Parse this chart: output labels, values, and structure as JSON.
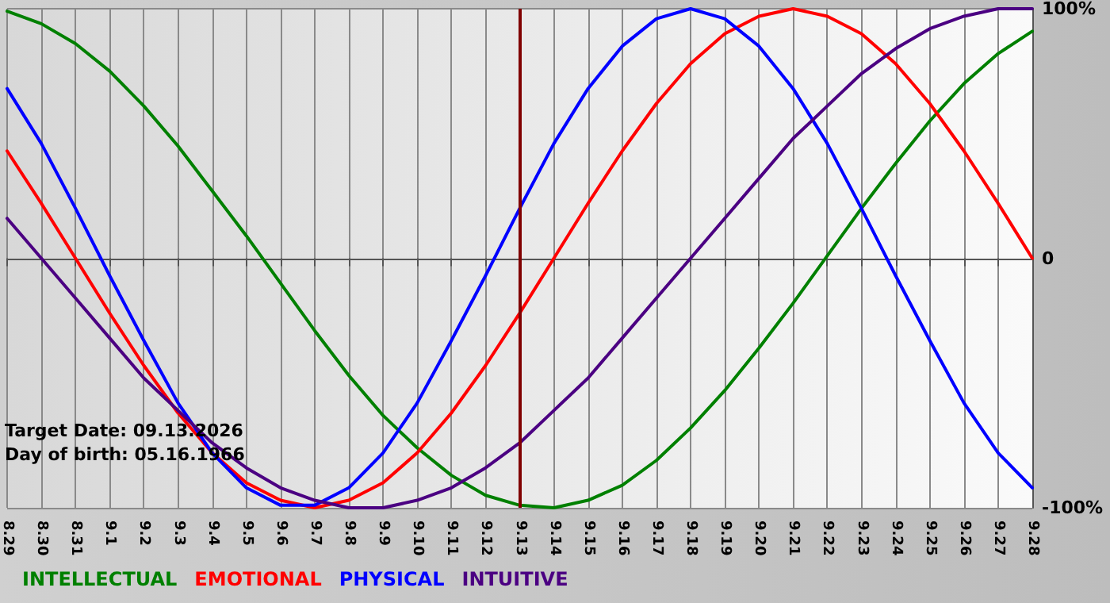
{
  "chart_data": {
    "type": "line",
    "categories": [
      "8.29",
      "8.30",
      "8.31",
      "9.1",
      "9.2",
      "9.3",
      "9.4",
      "9.5",
      "9.6",
      "9.7",
      "9.8",
      "9.9",
      "9.10",
      "9.11",
      "9.12",
      "9.13",
      "9.14",
      "9.15",
      "9.16",
      "9.17",
      "9.18",
      "9.19",
      "9.20",
      "9.21",
      "9.22",
      "9.23",
      "9.24",
      "9.25",
      "9.26",
      "9.27",
      "9.28"
    ],
    "series": [
      {
        "name": "INTELLECTUAL",
        "color": "#008000",
        "values": [
          99,
          94,
          86,
          75,
          61,
          45,
          27,
          9,
          -10,
          -29,
          -47,
          -63,
          -76,
          -87,
          -95,
          -99,
          -100,
          -97,
          -91,
          -81,
          -68,
          -53,
          -36,
          -18,
          1,
          20,
          38,
          55,
          70,
          82,
          91
        ]
      },
      {
        "name": "EMOTIONAL",
        "color": "#ff0000",
        "values": [
          43,
          22,
          0,
          -22,
          -43,
          -62,
          -78,
          -90,
          -97,
          -100,
          -97,
          -90,
          -78,
          -62,
          -43,
          -22,
          0,
          22,
          43,
          62,
          78,
          90,
          97,
          100,
          97,
          90,
          78,
          62,
          43,
          22,
          0
        ]
      },
      {
        "name": "PHYSICAL",
        "color": "#0000ff",
        "values": [
          68,
          46,
          20,
          -7,
          -33,
          -58,
          -78,
          -92,
          -99,
          -99,
          -92,
          -78,
          -58,
          -33,
          -7,
          20,
          46,
          68,
          85,
          96,
          100,
          96,
          85,
          68,
          46,
          20,
          -7,
          -33,
          -58,
          -78,
          -92
        ]
      },
      {
        "name": "INTUITIVE",
        "color": "#4b0082",
        "values": [
          16,
          0,
          -16,
          -32,
          -48,
          -61,
          -74,
          -84,
          -92,
          -97,
          -100,
          -100,
          -97,
          -92,
          -84,
          -74,
          -61,
          -48,
          -32,
          -16,
          0,
          16,
          32,
          48,
          61,
          74,
          84,
          92,
          97,
          100,
          100
        ]
      }
    ],
    "ylim": [
      -100,
      100
    ],
    "yticks": [
      {
        "value": -100,
        "label": "-100%"
      },
      0,
      {
        "value": 100,
        "label": "100%"
      }
    ],
    "ref_lines": [
      {
        "axis": "x",
        "value": "9.13",
        "color": "#800000"
      }
    ],
    "annotations": [
      "Target Date: 09.13.2026",
      "Day of birth: 05.16.1966"
    ],
    "grid": true,
    "legend": "bottom left",
    "marker": "none",
    "line_style": "solid"
  }
}
